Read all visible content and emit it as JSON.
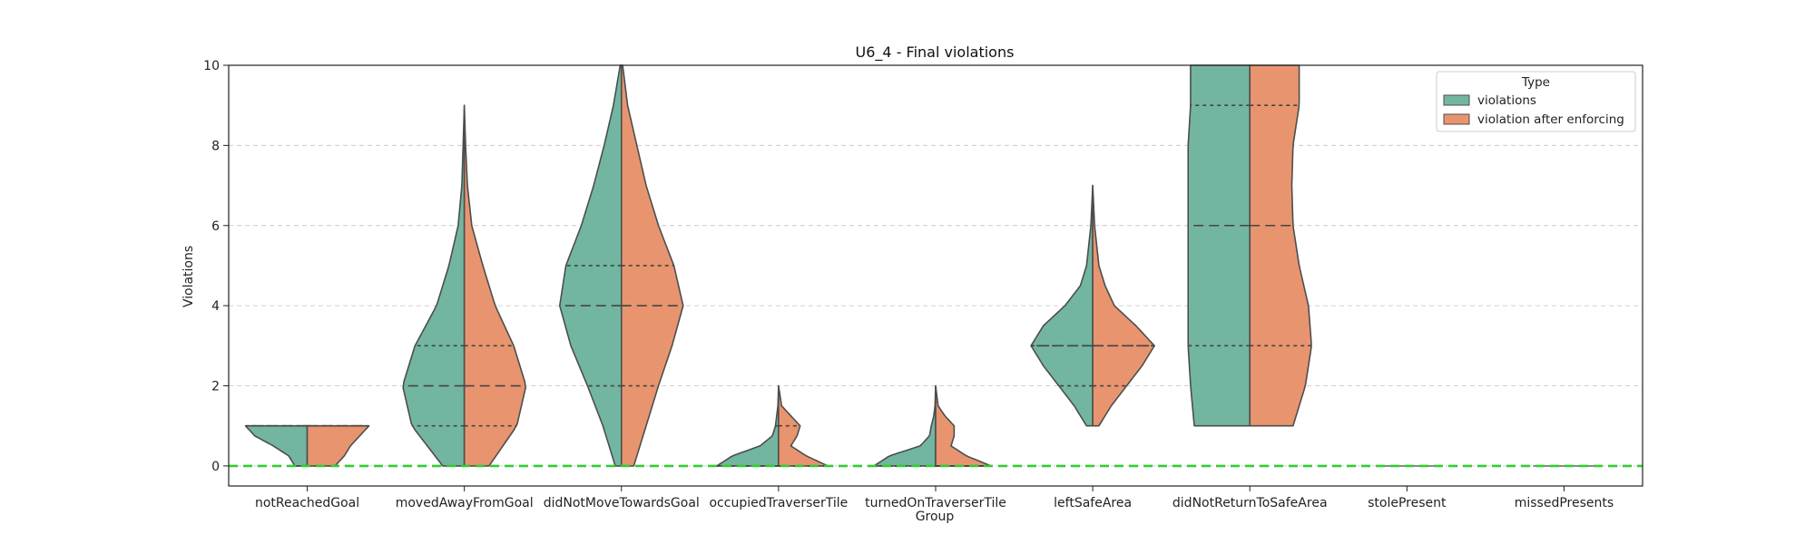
{
  "chart_data": {
    "type": "violin",
    "title": "U6_4 - Final violations",
    "xlabel": "Group",
    "ylabel": "Violations",
    "ylim": [
      -0.5,
      10
    ],
    "yticks": [
      0,
      2,
      4,
      6,
      8,
      10
    ],
    "grid": "y-dashed",
    "reference_line": {
      "y": 0,
      "color": "#33cc33",
      "style": "dashed"
    },
    "categories": [
      "notReachedGoal",
      "movedAwayFromGoal",
      "didNotMoveTowardsGoal",
      "occupiedTraverserTile",
      "turnedOnTraverserTile",
      "leftSafeArea",
      "didNotReturnToSafeArea",
      "stolePresent",
      "missedPresents"
    ],
    "legend": {
      "title": "Type",
      "position": "top-right"
    },
    "series": [
      {
        "name": "violations",
        "color": "#72b6a1",
        "groups": [
          {
            "min": 0,
            "max": 1,
            "quartiles": [
              0,
              1,
              1
            ],
            "profile": [
              [
                0,
                0.2
              ],
              [
                0.25,
                0.3
              ],
              [
                0.5,
                0.55
              ],
              [
                0.75,
                0.85
              ],
              [
                1,
                1.0
              ]
            ]
          },
          {
            "min": 0,
            "max": 9,
            "quartiles": [
              1,
              2,
              3
            ],
            "profile": [
              [
                0,
                0.35
              ],
              [
                1,
                0.85
              ],
              [
                2,
                1.0
              ],
              [
                3,
                0.8
              ],
              [
                4,
                0.45
              ],
              [
                5,
                0.25
              ],
              [
                6,
                0.1
              ],
              [
                7,
                0.04
              ],
              [
                8,
                0.02
              ],
              [
                9,
                0
              ]
            ]
          },
          {
            "min": 0,
            "max": 10,
            "quartiles": [
              2,
              4,
              5
            ],
            "profile": [
              [
                0,
                0.1
              ],
              [
                1,
                0.3
              ],
              [
                2,
                0.55
              ],
              [
                3,
                0.82
              ],
              [
                4,
                1.0
              ],
              [
                5,
                0.9
              ],
              [
                6,
                0.65
              ],
              [
                7,
                0.45
              ],
              [
                8,
                0.28
              ],
              [
                9,
                0.13
              ],
              [
                10,
                0.02
              ]
            ]
          },
          {
            "min": 0,
            "max": 2,
            "quartiles": [
              0,
              0,
              1
            ],
            "profile": [
              [
                0,
                1.0
              ],
              [
                0.25,
                0.75
              ],
              [
                0.5,
                0.3
              ],
              [
                0.75,
                0.1
              ],
              [
                1,
                0.05
              ],
              [
                1.25,
                0.03
              ],
              [
                1.5,
                0.01
              ],
              [
                2,
                0
              ]
            ]
          },
          {
            "min": 0,
            "max": 2,
            "quartiles": [
              0,
              0,
              0
            ],
            "profile": [
              [
                0,
                1.0
              ],
              [
                0.25,
                0.75
              ],
              [
                0.5,
                0.25
              ],
              [
                0.75,
                0.1
              ],
              [
                1,
                0.07
              ],
              [
                1.25,
                0.03
              ],
              [
                1.5,
                0.01
              ],
              [
                2,
                0
              ]
            ]
          },
          {
            "min": 1,
            "max": 7,
            "quartiles": [
              2,
              3,
              3
            ],
            "profile": [
              [
                1,
                0.1
              ],
              [
                1.5,
                0.3
              ],
              [
                2,
                0.55
              ],
              [
                2.5,
                0.8
              ],
              [
                3,
                1.0
              ],
              [
                3.5,
                0.8
              ],
              [
                4,
                0.45
              ],
              [
                4.5,
                0.2
              ],
              [
                5,
                0.1
              ],
              [
                6,
                0.03
              ],
              [
                7,
                0
              ]
            ]
          },
          {
            "min": 1,
            "max": 10,
            "quartiles": [
              3,
              6,
              9
            ],
            "profile": [
              [
                1,
                0.9
              ],
              [
                2,
                0.96
              ],
              [
                3,
                1.0
              ],
              [
                4,
                1.0
              ],
              [
                5,
                1.0
              ],
              [
                6,
                1.0
              ],
              [
                7,
                1.0
              ],
              [
                8,
                1.0
              ],
              [
                9,
                0.96
              ],
              [
                10,
                0.96
              ]
            ]
          },
          {
            "min": 0,
            "max": 0,
            "quartiles": [
              0,
              0,
              0
            ],
            "profile": []
          },
          {
            "min": 0,
            "max": 0,
            "quartiles": [
              0,
              0,
              0
            ],
            "profile": []
          }
        ]
      },
      {
        "name": "violation after enforcing",
        "color": "#e8956f",
        "groups": [
          {
            "min": 0,
            "max": 1,
            "quartiles": [
              0,
              1,
              1
            ],
            "profile": [
              [
                0,
                0.45
              ],
              [
                0.25,
                0.6
              ],
              [
                0.5,
                0.7
              ],
              [
                0.75,
                0.85
              ],
              [
                1,
                1.0
              ]
            ]
          },
          {
            "min": 0,
            "max": 9,
            "quartiles": [
              1,
              2,
              3
            ],
            "profile": [
              [
                0,
                0.4
              ],
              [
                1,
                0.85
              ],
              [
                2,
                1.0
              ],
              [
                3,
                0.8
              ],
              [
                4,
                0.5
              ],
              [
                5,
                0.3
              ],
              [
                6,
                0.12
              ],
              [
                7,
                0.05
              ],
              [
                8,
                0.02
              ],
              [
                9,
                0
              ]
            ]
          },
          {
            "min": 0,
            "max": 10,
            "quartiles": [
              2,
              4,
              5
            ],
            "profile": [
              [
                0,
                0.2
              ],
              [
                1,
                0.4
              ],
              [
                2,
                0.6
              ],
              [
                3,
                0.82
              ],
              [
                4,
                1.0
              ],
              [
                5,
                0.85
              ],
              [
                6,
                0.6
              ],
              [
                7,
                0.4
              ],
              [
                8,
                0.25
              ],
              [
                9,
                0.1
              ],
              [
                10,
                0.02
              ]
            ]
          },
          {
            "min": 0,
            "max": 2,
            "quartiles": [
              0,
              0,
              1
            ],
            "profile": [
              [
                0,
                0.8
              ],
              [
                0.25,
                0.45
              ],
              [
                0.5,
                0.2
              ],
              [
                0.75,
                0.3
              ],
              [
                1,
                0.35
              ],
              [
                1.25,
                0.2
              ],
              [
                1.5,
                0.05
              ],
              [
                2,
                0
              ]
            ]
          },
          {
            "min": 0,
            "max": 2,
            "quartiles": [
              0,
              0,
              0
            ],
            "profile": [
              [
                0,
                0.9
              ],
              [
                0.25,
                0.5
              ],
              [
                0.5,
                0.25
              ],
              [
                0.75,
                0.3
              ],
              [
                1,
                0.3
              ],
              [
                1.25,
                0.15
              ],
              [
                1.5,
                0.04
              ],
              [
                2,
                0
              ]
            ]
          },
          {
            "min": 1,
            "max": 7,
            "quartiles": [
              2,
              3,
              3
            ],
            "profile": [
              [
                1,
                0.1
              ],
              [
                1.5,
                0.3
              ],
              [
                2,
                0.55
              ],
              [
                2.5,
                0.8
              ],
              [
                3,
                1.0
              ],
              [
                3.5,
                0.7
              ],
              [
                4,
                0.35
              ],
              [
                4.5,
                0.2
              ],
              [
                5,
                0.1
              ],
              [
                6,
                0.03
              ],
              [
                7,
                0
              ]
            ]
          },
          {
            "min": 1,
            "max": 10,
            "quartiles": [
              3,
              6,
              9
            ],
            "profile": [
              [
                1,
                0.7
              ],
              [
                2,
                0.9
              ],
              [
                3,
                1.0
              ],
              [
                4,
                0.95
              ],
              [
                5,
                0.8
              ],
              [
                6,
                0.7
              ],
              [
                7,
                0.68
              ],
              [
                8,
                0.7
              ],
              [
                9,
                0.8
              ],
              [
                10,
                0.8
              ]
            ]
          },
          {
            "min": 0,
            "max": 0,
            "quartiles": [
              0,
              0,
              0
            ],
            "profile": []
          },
          {
            "min": 0,
            "max": 0,
            "quartiles": [
              0,
              0,
              0
            ],
            "profile": []
          }
        ]
      }
    ]
  }
}
